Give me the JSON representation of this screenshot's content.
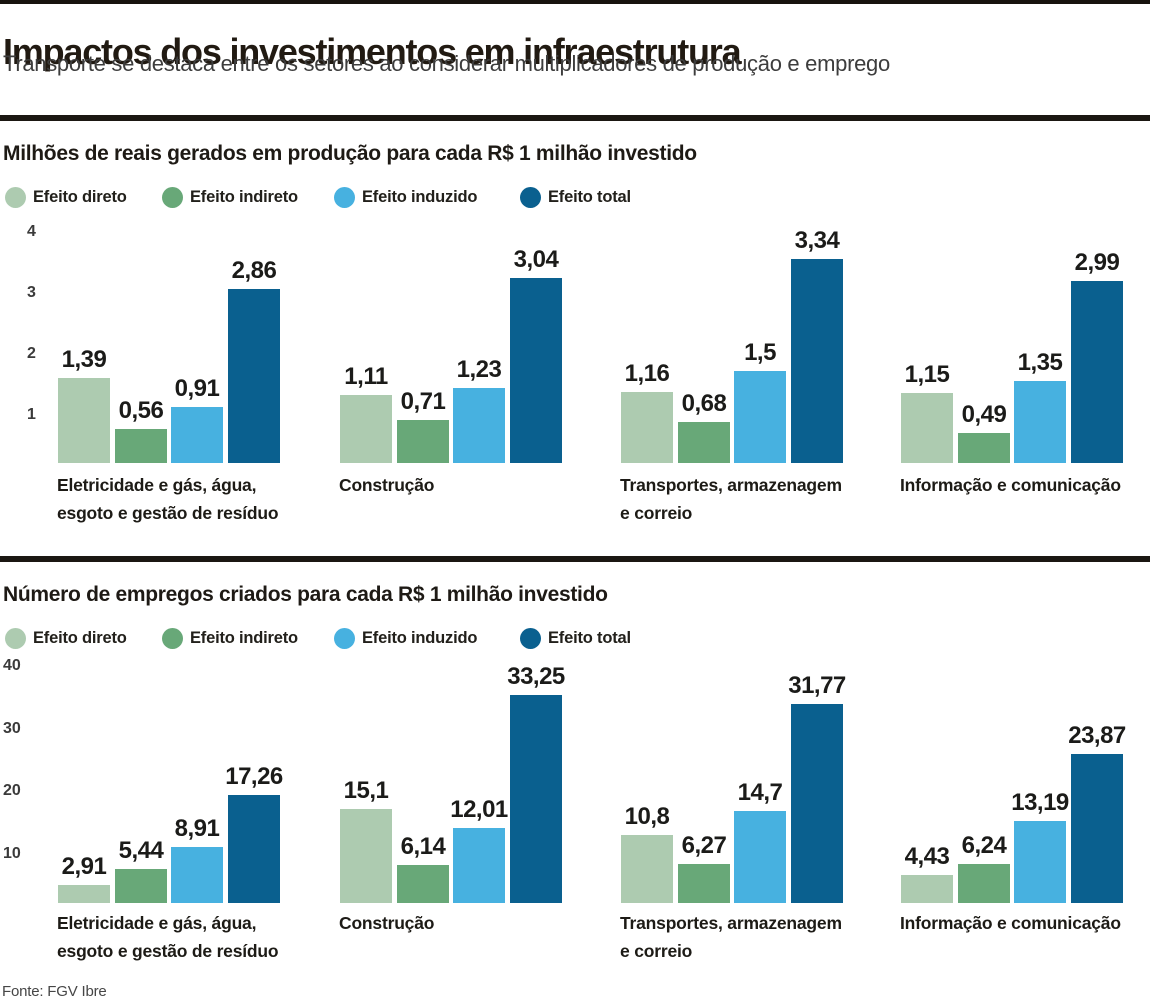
{
  "page": {
    "title": "Impactos dos investimentos em infraestrutura",
    "subtitle": "Transporte se destaca entre os setores ao considerar multiplicadores de produção e emprego",
    "source": "Fonte: FGV Ibre"
  },
  "legend_labels": [
    "Efeito direto",
    "Efeito indireto",
    "Efeito induzido",
    "Efeito total"
  ],
  "colors": {
    "efeito_direto": "#adcbb0",
    "efeito_indireto": "#68a878",
    "efeito_induzido": "#47b1e0",
    "efeito_total": "#0a608f"
  },
  "chart_data": [
    {
      "type": "bar",
      "title": "Milhões de reais gerados em produção para cada R$ 1 milhão investido",
      "categories": [
        "Eletricidade e gás, água,\nesgoto e gestão de resíduo",
        "Construção",
        "Transportes, armazenagem\ne correio",
        "Informação e comunicação"
      ],
      "series": [
        {
          "name": "Efeito direto",
          "color": "#adcbb0",
          "values": [
            1.39,
            1.11,
            1.16,
            1.15
          ],
          "labels": [
            "1,39",
            "1,11",
            "1,16",
            "1,15"
          ]
        },
        {
          "name": "Efeito indireto",
          "color": "#68a878",
          "values": [
            0.56,
            0.71,
            0.68,
            0.49
          ],
          "labels": [
            "0,56",
            "0,71",
            "0,68",
            "0,49"
          ]
        },
        {
          "name": "Efeito induzido",
          "color": "#47b1e0",
          "values": [
            0.91,
            1.23,
            1.5,
            1.35
          ],
          "labels": [
            "0,91",
            "1,23",
            "1,5",
            "1,35"
          ]
        },
        {
          "name": "Efeito total",
          "color": "#0a608f",
          "values": [
            2.86,
            3.04,
            3.34,
            2.99
          ],
          "labels": [
            "2,86",
            "3,04",
            "3,34",
            "2,99"
          ]
        }
      ],
      "ylim": [
        0,
        4
      ],
      "yticks": [
        4,
        3,
        2,
        1
      ],
      "grid": true,
      "legend_position": "top",
      "xlabel": "",
      "ylabel": ""
    },
    {
      "type": "bar",
      "title": "Número de empregos criados para cada R$ 1 milhão investido",
      "categories": [
        "Eletricidade e gás, água,\nesgoto e gestão de resíduo",
        "Construção",
        "Transportes, armazenagem\ne correio",
        "Informação e comunicação"
      ],
      "series": [
        {
          "name": "Efeito direto",
          "color": "#adcbb0",
          "values": [
            2.91,
            15.1,
            10.8,
            4.43
          ],
          "labels": [
            "2,91",
            "15,1",
            "10,8",
            "4,43"
          ]
        },
        {
          "name": "Efeito indireto",
          "color": "#68a878",
          "values": [
            5.44,
            6.14,
            6.27,
            6.24
          ],
          "labels": [
            "5,44",
            "6,14",
            "6,27",
            "6,24"
          ]
        },
        {
          "name": "Efeito induzido",
          "color": "#47b1e0",
          "values": [
            8.91,
            12.01,
            14.7,
            13.19
          ],
          "labels": [
            "8,91",
            "12,01",
            "14,7",
            "13,19"
          ]
        },
        {
          "name": "Efeito total",
          "color": "#0a608f",
          "values": [
            17.26,
            33.25,
            31.77,
            23.87
          ],
          "labels": [
            "17,26",
            "33,25",
            "31,77",
            "23,87"
          ]
        }
      ],
      "ylim": [
        0,
        40
      ],
      "yticks": [
        40,
        30,
        20,
        10
      ],
      "grid": true,
      "legend_position": "top",
      "xlabel": "",
      "ylabel": ""
    }
  ]
}
